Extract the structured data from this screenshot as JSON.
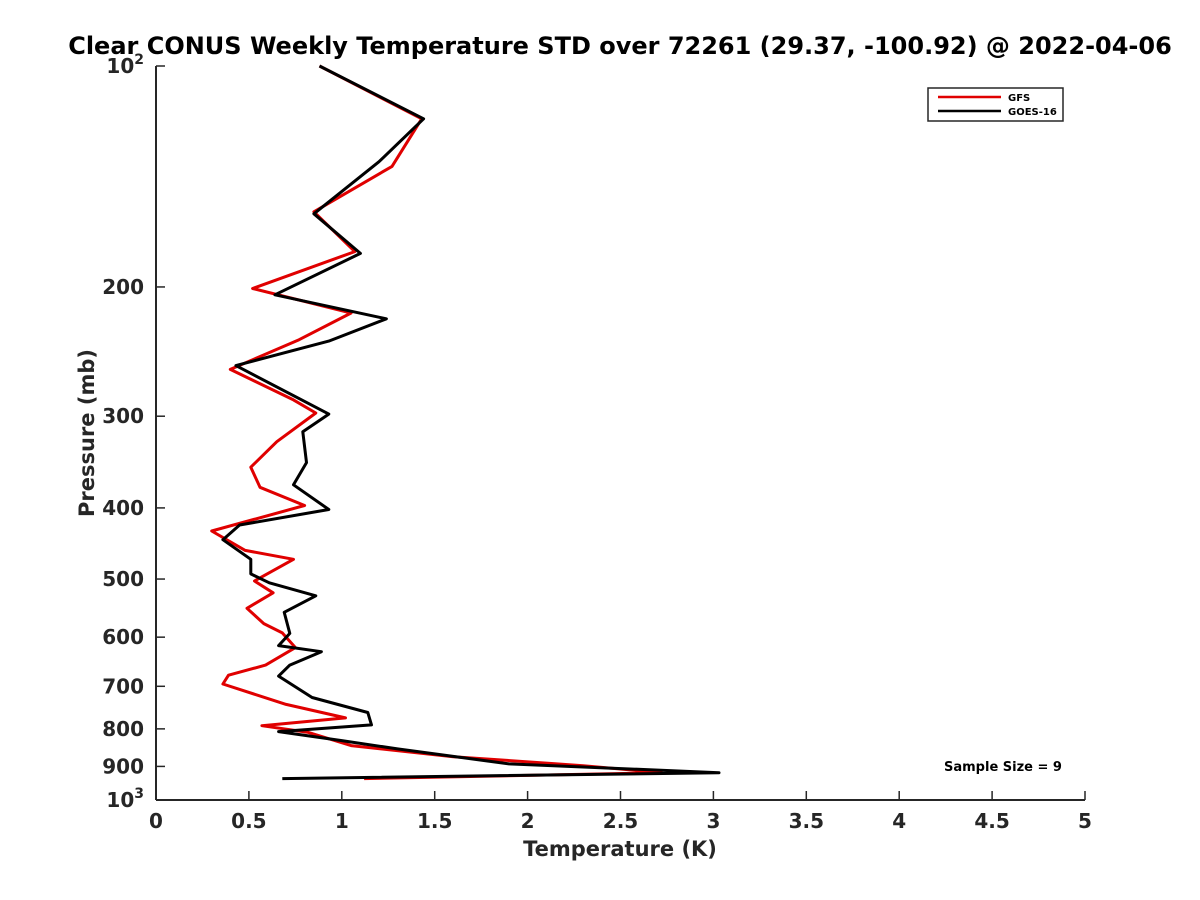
{
  "chart_data": {
    "type": "line",
    "title": "Clear CONUS Weekly Temperature STD over 72261 (29.37, -100.92) @ 2022-04-06",
    "xlabel": "Temperature (K)",
    "ylabel": "Pressure (mb)",
    "xlim": [
      0,
      5
    ],
    "ylim": [
      100,
      1000
    ],
    "y_scale": "log",
    "y_reversed": true,
    "grid": false,
    "legend_position": "top-right",
    "x_ticks": [
      {
        "value": 0,
        "label": "0"
      },
      {
        "value": 0.5,
        "label": "0.5"
      },
      {
        "value": 1,
        "label": "1"
      },
      {
        "value": 1.5,
        "label": "1.5"
      },
      {
        "value": 2,
        "label": "2"
      },
      {
        "value": 2.5,
        "label": "2.5"
      },
      {
        "value": 3,
        "label": "3"
      },
      {
        "value": 3.5,
        "label": "3.5"
      },
      {
        "value": 4,
        "label": "4"
      },
      {
        "value": 4.5,
        "label": "4.5"
      },
      {
        "value": 5,
        "label": "5"
      }
    ],
    "y_ticks": [
      {
        "value": 100,
        "base": "10",
        "exp": "2"
      },
      {
        "value": 200,
        "label": "200"
      },
      {
        "value": 300,
        "label": "300"
      },
      {
        "value": 400,
        "label": "400"
      },
      {
        "value": 500,
        "label": "500"
      },
      {
        "value": 600,
        "label": "600"
      },
      {
        "value": 700,
        "label": "700"
      },
      {
        "value": 800,
        "label": "800"
      },
      {
        "value": 900,
        "label": "900"
      },
      {
        "value": 1000,
        "base": "10",
        "exp": "3"
      }
    ],
    "annotation": "Sample Size = 9",
    "series": [
      {
        "name": "GFS",
        "color": "#e00000",
        "points": [
          [
            0.88,
            100
          ],
          [
            1.43,
            118
          ],
          [
            1.27,
            137
          ],
          [
            0.85,
            158
          ],
          [
            1.07,
            179
          ],
          [
            0.52,
            201
          ],
          [
            1.05,
            217
          ],
          [
            0.77,
            236
          ],
          [
            0.4,
            259
          ],
          [
            0.74,
            285
          ],
          [
            0.86,
            297
          ],
          [
            0.65,
            325
          ],
          [
            0.51,
            352
          ],
          [
            0.56,
            375
          ],
          [
            0.8,
            397
          ],
          [
            0.3,
            430
          ],
          [
            0.48,
            457
          ],
          [
            0.74,
            470
          ],
          [
            0.53,
            503
          ],
          [
            0.63,
            522
          ],
          [
            0.49,
            548
          ],
          [
            0.58,
            575
          ],
          [
            0.68,
            592
          ],
          [
            0.75,
            620
          ],
          [
            0.59,
            655
          ],
          [
            0.39,
            676
          ],
          [
            0.36,
            695
          ],
          [
            0.7,
            741
          ],
          [
            1.02,
            773
          ],
          [
            0.57,
            792
          ],
          [
            0.82,
            809
          ],
          [
            1.05,
            843
          ],
          [
            1.6,
            873
          ],
          [
            2.3,
            898
          ],
          [
            2.72,
            918
          ],
          [
            1.12,
            935
          ]
        ]
      },
      {
        "name": "GOES-16",
        "color": "#000000",
        "points": [
          [
            0.88,
            100
          ],
          [
            1.44,
            118
          ],
          [
            1.2,
            135
          ],
          [
            0.85,
            159
          ],
          [
            1.1,
            180
          ],
          [
            0.64,
            205
          ],
          [
            1.24,
            221
          ],
          [
            0.93,
            237
          ],
          [
            0.43,
            256
          ],
          [
            0.76,
            283
          ],
          [
            0.93,
            298
          ],
          [
            0.79,
            315
          ],
          [
            0.81,
            347
          ],
          [
            0.74,
            372
          ],
          [
            0.93,
            402
          ],
          [
            0.45,
            422
          ],
          [
            0.36,
            442
          ],
          [
            0.51,
            470
          ],
          [
            0.51,
            492
          ],
          [
            0.61,
            506
          ],
          [
            0.86,
            527
          ],
          [
            0.69,
            555
          ],
          [
            0.72,
            593
          ],
          [
            0.66,
            616
          ],
          [
            0.89,
            628
          ],
          [
            0.72,
            655
          ],
          [
            0.66,
            678
          ],
          [
            0.84,
            725
          ],
          [
            1.14,
            760
          ],
          [
            1.16,
            790
          ],
          [
            0.66,
            807
          ],
          [
            1.0,
            830
          ],
          [
            1.3,
            852
          ],
          [
            1.9,
            893
          ],
          [
            3.03,
            918
          ],
          [
            0.68,
            935
          ]
        ]
      }
    ]
  }
}
